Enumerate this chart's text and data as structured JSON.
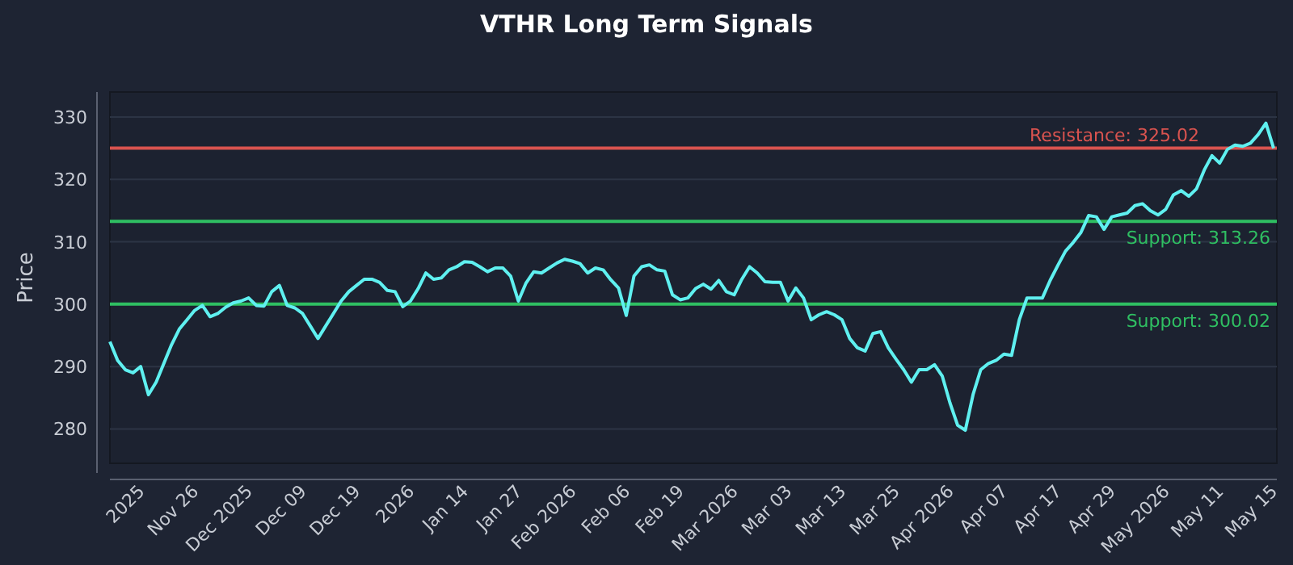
{
  "chart_data": {
    "type": "line",
    "title": "VTHR Long Term Signals",
    "ylabel": "Price",
    "categories": [
      null,
      null,
      null,
      null,
      "2025",
      null,
      null,
      null,
      null,
      null,
      null,
      "Nov 26",
      null,
      null,
      null,
      null,
      null,
      null,
      "Dec 2025",
      null,
      null,
      null,
      null,
      null,
      null,
      "Dec 09",
      null,
      null,
      null,
      null,
      null,
      null,
      "Dec 19",
      null,
      null,
      null,
      null,
      null,
      null,
      "2026",
      null,
      null,
      null,
      null,
      null,
      null,
      "Jan 14",
      null,
      null,
      null,
      null,
      null,
      null,
      "Jan 27",
      null,
      null,
      null,
      null,
      null,
      null,
      "Feb 2026",
      null,
      null,
      null,
      null,
      null,
      null,
      "Feb 06",
      null,
      null,
      null,
      null,
      null,
      null,
      "Feb 19",
      null,
      null,
      null,
      null,
      null,
      null,
      "Mar 2026",
      null,
      null,
      null,
      null,
      null,
      null,
      "Mar 03",
      null,
      null,
      null,
      null,
      null,
      null,
      "Mar 13",
      null,
      null,
      null,
      null,
      null,
      null,
      "Mar 25",
      null,
      null,
      null,
      null,
      null,
      null,
      "Apr 2026",
      null,
      null,
      null,
      null,
      null,
      null,
      "Apr 07",
      null,
      null,
      null,
      null,
      null,
      null,
      "Apr 17",
      null,
      null,
      null,
      null,
      null,
      null,
      "Apr 29",
      null,
      null,
      null,
      null,
      null,
      null,
      "May 2026",
      null,
      null,
      null,
      null,
      null,
      null,
      "May 11",
      null,
      null,
      null,
      null,
      null,
      null,
      "May 15"
    ],
    "series": [
      {
        "color": "#5ff0f0",
        "values": [
          294,
          291,
          289.5,
          289,
          290,
          285.5,
          287.5,
          290.5,
          293.5,
          296,
          297.5,
          299,
          299.8,
          298,
          298.5,
          299.5,
          300.2,
          300.5,
          301,
          299.8,
          299.7,
          302,
          303,
          299.8,
          299.4,
          298.5,
          296.5,
          294.5,
          296.5,
          298.5,
          300.5,
          302,
          303,
          304,
          304,
          303.5,
          302.2,
          302,
          299.6,
          300.5,
          302.5,
          305,
          304,
          304.2,
          305.5,
          306,
          306.8,
          306.7,
          306,
          305.2,
          305.8,
          305.8,
          304.5,
          300.5,
          303.4,
          305.2,
          305,
          305.8,
          306.6,
          307.2,
          306.9,
          306.5,
          305,
          305.8,
          305.5,
          303.9,
          302.6,
          298.2,
          304.5,
          306,
          306.3,
          305.5,
          305.3,
          301.5,
          300.7,
          301,
          302.5,
          303.2,
          302.4,
          303.8,
          302,
          301.5,
          304,
          306,
          305,
          303.6,
          303.5,
          303.5,
          300.5,
          302.6,
          301,
          297.5,
          298.3,
          298.8,
          298.3,
          297.5,
          294.5,
          293,
          292.5,
          295.3,
          295.6,
          293,
          291.2,
          289.5,
          287.5,
          289.5,
          289.5,
          290.3,
          288.5,
          284.2,
          280.6,
          279.8,
          285.5,
          289.5,
          290.5,
          291,
          292,
          291.8,
          297.5,
          301,
          301,
          301,
          303.8,
          306.2,
          308.5,
          309.9,
          311.5,
          314.2,
          314,
          312,
          314,
          314.3,
          314.6,
          315.8,
          316.1,
          315,
          314.3,
          315.2,
          317.5,
          318.2,
          317.3,
          318.5,
          321.5,
          323.8,
          322.6,
          324.8,
          325.5,
          325.3,
          325.8,
          327.2,
          329,
          325
        ]
      }
    ],
    "ylim": [
      274.5,
      334
    ],
    "yticks": [
      280,
      290,
      300,
      310,
      320,
      330
    ],
    "grid": "y",
    "line_style": "solid",
    "marker": "none",
    "ref_lines": [
      {
        "axis": "y",
        "value": 325.02,
        "label": "Resistance: 325.02",
        "color": "#d9534f"
      },
      {
        "axis": "y",
        "value": 313.26,
        "label": "Support: 313.26",
        "color": "#2fbf62"
      },
      {
        "axis": "y",
        "value": 300.02,
        "label": "Support: 300.02",
        "color": "#2fbf62"
      }
    ]
  }
}
